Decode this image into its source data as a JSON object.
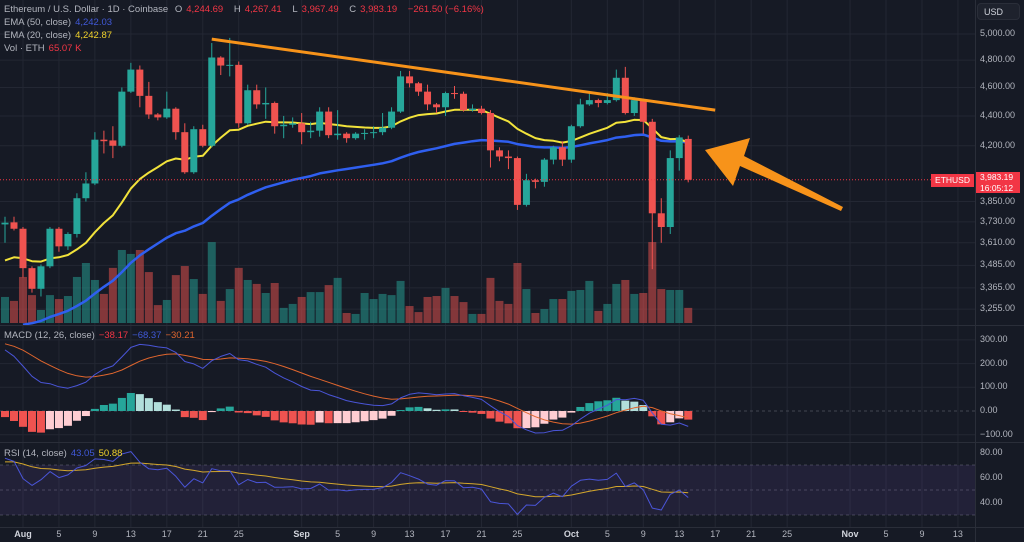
{
  "header": {
    "title": "Ethereum / U.S. Dollar · 1D · Coinbase",
    "open_label": "O",
    "open": "4,244.69",
    "high_label": "H",
    "high": "4,267.41",
    "low_label": "L",
    "low": "3,967.49",
    "close_label": "C",
    "close": "3,983.19",
    "change": "−261.50 (−6.16%)"
  },
  "indicators": {
    "ema50_label": "EMA (50, close)",
    "ema50_value": "4,242.03",
    "ema20_label": "EMA (20, close)",
    "ema20_value": "4,242.87",
    "vol_label": "Vol · ETH",
    "vol_value": "65.07 K",
    "macd_label": "MACD (12, 26, close)",
    "macd_hist": "−38.17",
    "macd_line": "−68.37",
    "macd_signal": "−30.21",
    "rsi_label": "RSI (14, close)",
    "rsi_value": "43.05",
    "rsi_ma": "50.88"
  },
  "price_axis": {
    "currency_button": "USD",
    "labels": [
      "5,000.00",
      "4,800.00",
      "4,600.00",
      "4,400.00",
      "4,200.00",
      "3,850.00",
      "3,730.00",
      "3,610.00",
      "3,485.00",
      "3,365.00",
      "3,255.00"
    ],
    "symbol_tag": "ETHUSD",
    "last_price": "3,983.19",
    "countdown": "16:05:12"
  },
  "macd_axis": [
    "300.00",
    "200.00",
    "100.00",
    "0.00",
    "−100.00"
  ],
  "rsi_axis": [
    "80.00",
    "60.00",
    "40.00"
  ],
  "time_axis": [
    {
      "label": "Aug",
      "i": 2,
      "bold": true
    },
    {
      "label": "5",
      "i": 6
    },
    {
      "label": "9",
      "i": 10
    },
    {
      "label": "13",
      "i": 14
    },
    {
      "label": "17",
      "i": 18
    },
    {
      "label": "21",
      "i": 22
    },
    {
      "label": "25",
      "i": 26
    },
    {
      "label": "Sep",
      "i": 33,
      "bold": true
    },
    {
      "label": "5",
      "i": 37
    },
    {
      "label": "9",
      "i": 41
    },
    {
      "label": "13",
      "i": 45
    },
    {
      "label": "17",
      "i": 49
    },
    {
      "label": "21",
      "i": 53
    },
    {
      "label": "25",
      "i": 57
    },
    {
      "label": "Oct",
      "i": 63,
      "bold": true
    },
    {
      "label": "5",
      "i": 67
    },
    {
      "label": "9",
      "i": 71
    },
    {
      "label": "13",
      "i": 75
    },
    {
      "label": "17",
      "i": 79
    },
    {
      "label": "21",
      "i": 83
    },
    {
      "label": "25",
      "i": 87
    },
    {
      "label": "Nov",
      "i": 94,
      "bold": true
    },
    {
      "label": "5",
      "i": 98
    },
    {
      "label": "9",
      "i": 102
    },
    {
      "label": "13",
      "i": 106
    }
  ],
  "colors": {
    "up": "#26a69a",
    "down": "#ef5350",
    "ema20": "#f2e33b",
    "ema50": "#2f5ff0",
    "trend": "#f7931a",
    "macd": "#4a55d8",
    "signal": "#e0662e",
    "rsi": "#4a55d8",
    "rsi_ma": "#d4a72c"
  },
  "chart_data": {
    "type": "candlestick",
    "ohlc": [
      [
        3715,
        3760,
        3610,
        3725
      ],
      [
        3727,
        3760,
        3680,
        3690
      ],
      [
        3690,
        3700,
        3420,
        3470
      ],
      [
        3470,
        3480,
        3340,
        3360
      ],
      [
        3360,
        3490,
        3320,
        3480
      ],
      [
        3480,
        3700,
        3470,
        3690
      ],
      [
        3690,
        3700,
        3560,
        3590
      ],
      [
        3590,
        3670,
        3570,
        3660
      ],
      [
        3660,
        3900,
        3640,
        3870
      ],
      [
        3870,
        4030,
        3850,
        3960
      ],
      [
        3960,
        4290,
        3950,
        4240
      ],
      [
        4240,
        4300,
        4150,
        4230
      ],
      [
        4235,
        4330,
        4120,
        4200
      ],
      [
        4200,
        4600,
        4190,
        4570
      ],
      [
        4570,
        4780,
        4560,
        4730
      ],
      [
        4730,
        4760,
        4460,
        4540
      ],
      [
        4540,
        4640,
        4380,
        4410
      ],
      [
        4410,
        4420,
        4370,
        4390
      ],
      [
        4390,
        4570,
        4380,
        4450
      ],
      [
        4450,
        4460,
        4240,
        4290
      ],
      [
        4290,
        4350,
        4020,
        4030
      ],
      [
        4030,
        4330,
        4020,
        4310
      ],
      [
        4310,
        4340,
        4190,
        4200
      ],
      [
        4200,
        4930,
        4190,
        4820
      ],
      [
        4820,
        4830,
        4690,
        4760
      ],
      [
        4760,
        4970,
        4680,
        4765
      ],
      [
        4765,
        4790,
        4320,
        4350
      ],
      [
        4350,
        4620,
        4340,
        4580
      ],
      [
        4580,
        4620,
        4450,
        4480
      ],
      [
        4480,
        4600,
        4380,
        4490
      ],
      [
        4490,
        4500,
        4280,
        4330
      ],
      [
        4330,
        4400,
        4250,
        4340
      ],
      [
        4340,
        4390,
        4320,
        4350
      ],
      [
        4350,
        4420,
        4210,
        4290
      ],
      [
        4290,
        4360,
        4250,
        4300
      ],
      [
        4300,
        4460,
        4260,
        4430
      ],
      [
        4430,
        4460,
        4250,
        4270
      ],
      [
        4270,
        4440,
        4240,
        4280
      ],
      [
        4280,
        4290,
        4220,
        4250
      ],
      [
        4250,
        4290,
        4240,
        4280
      ],
      [
        4280,
        4310,
        4240,
        4285
      ],
      [
        4285,
        4330,
        4250,
        4290
      ],
      [
        4290,
        4420,
        4270,
        4320
      ],
      [
        4320,
        4460,
        4310,
        4430
      ],
      [
        4430,
        4720,
        4420,
        4680
      ],
      [
        4680,
        4720,
        4600,
        4630
      ],
      [
        4630,
        4640,
        4540,
        4570
      ],
      [
        4570,
        4620,
        4440,
        4480
      ],
      [
        4480,
        4490,
        4420,
        4460
      ],
      [
        4460,
        4570,
        4400,
        4560
      ],
      [
        4560,
        4610,
        4520,
        4555
      ],
      [
        4555,
        4570,
        4430,
        4440
      ],
      [
        4440,
        4480,
        4430,
        4450
      ],
      [
        4450,
        4470,
        4410,
        4420
      ],
      [
        4420,
        4440,
        4060,
        4170
      ],
      [
        4170,
        4190,
        4100,
        4130
      ],
      [
        4130,
        4170,
        4050,
        4120
      ],
      [
        4120,
        4130,
        3800,
        3830
      ],
      [
        3830,
        4020,
        3820,
        3980
      ],
      [
        3980,
        3990,
        3930,
        3970
      ],
      [
        3970,
        4120,
        3940,
        4110
      ],
      [
        4110,
        4200,
        4080,
        4190
      ],
      [
        4190,
        4230,
        4070,
        4110
      ],
      [
        4110,
        4340,
        4090,
        4330
      ],
      [
        4330,
        4520,
        4320,
        4480
      ],
      [
        4480,
        4560,
        4470,
        4510
      ],
      [
        4510,
        4520,
        4460,
        4490
      ],
      [
        4490,
        4560,
        4480,
        4510
      ],
      [
        4510,
        4730,
        4500,
        4670
      ],
      [
        4670,
        4750,
        4410,
        4420
      ],
      [
        4420,
        4530,
        4400,
        4510
      ],
      [
        4510,
        4520,
        4280,
        4360
      ],
      [
        4360,
        4380,
        3465,
        3780
      ],
      [
        3780,
        3870,
        3610,
        3700
      ],
      [
        3700,
        4170,
        3660,
        4120
      ],
      [
        4120,
        4270,
        4040,
        4255
      ],
      [
        4245,
        4267,
        3967,
        3983
      ]
    ],
    "volume_k": [
      112,
      95,
      198,
      120,
      56,
      120,
      103,
      116,
      198,
      258,
      185,
      125,
      237,
      314,
      297,
      314,
      219,
      77,
      99,
      206,
      245,
      189,
      125,
      348,
      95,
      146,
      237,
      185,
      168,
      129,
      172,
      65,
      82,
      112,
      133,
      133,
      163,
      194,
      43,
      39,
      129,
      103,
      125,
      120,
      181,
      73,
      47,
      112,
      116,
      151,
      116,
      90,
      39,
      39,
      194,
      95,
      82,
      258,
      146,
      43,
      60,
      103,
      103,
      138,
      142,
      181,
      52,
      82,
      168,
      185,
      125,
      129,
      348,
      146,
      142,
      142,
      65
    ],
    "ema20_start": 3490,
    "ema50_start": 3120,
    "macd_seed": {
      "ema12": 3800,
      "ema26": 3515,
      "signal": 290
    },
    "rsi_seed": {
      "avg_gain": 60,
      "avg_loss": 20,
      "ma": 72
    },
    "price_levels": [
      5000,
      4800,
      4600,
      4400,
      4200,
      3850,
      3730,
      3610,
      3485,
      3365,
      3255
    ],
    "macd_levels": [
      300,
      200,
      100,
      0,
      -100
    ],
    "rsi_levels": [
      80,
      60,
      40
    ],
    "trendline": {
      "from": {
        "i": 23,
        "price": 4960
      },
      "to": {
        "i": 79,
        "price": 4440
      }
    },
    "ylim": [
      3255,
      5000
    ],
    "scale": "log"
  }
}
